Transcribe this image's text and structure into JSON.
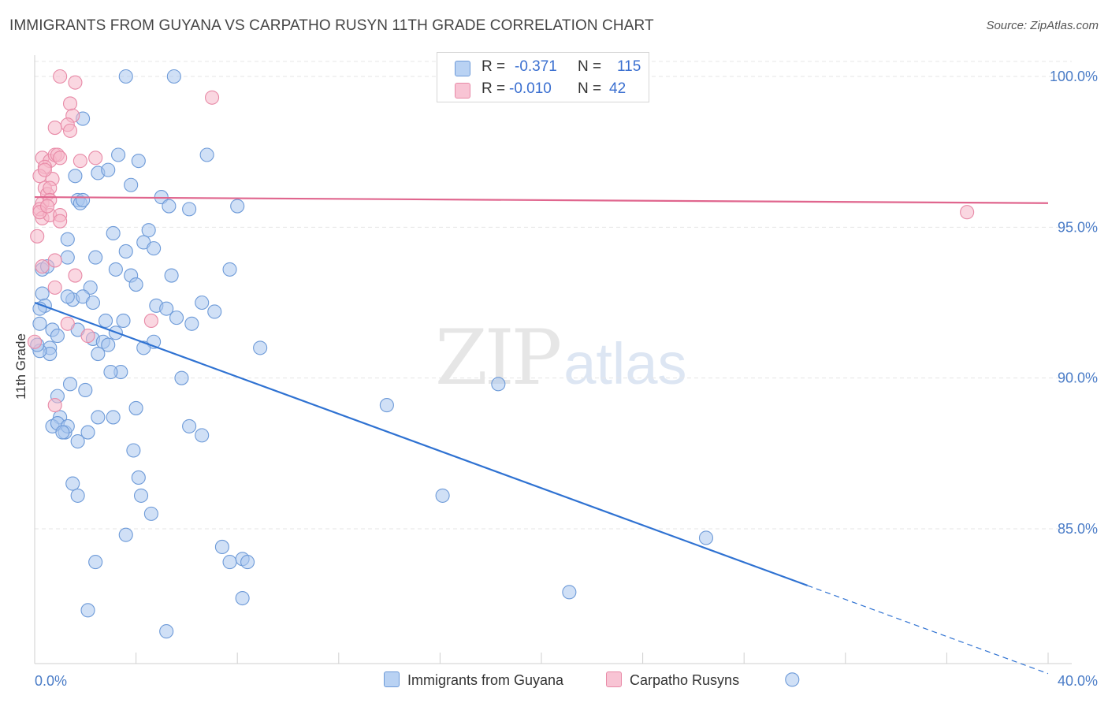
{
  "header": {
    "title": "IMMIGRANTS FROM GUYANA VS CARPATHO RUSYN 11TH GRADE CORRELATION CHART",
    "source": "Source: ZipAtlas.com"
  },
  "watermark": {
    "zip": "ZIP",
    "atlas": "atlas"
  },
  "legend": {
    "rows": [
      {
        "r_label": "R =",
        "r_value": "-0.371",
        "n_label": "N =",
        "n_value": "115"
      },
      {
        "r_label": "R =",
        "r_value": "-0.010",
        "n_label": "N =",
        "n_value": "42"
      }
    ]
  },
  "bottom_legend": {
    "series_a": "Immigrants from Guyana",
    "series_b": "Carpatho Rusyns"
  },
  "colors": {
    "blue_fill": "#a9c6ef",
    "blue_stroke": "#6d9ad8",
    "blue_line": "#2f72d2",
    "pink_fill": "#f5b6c9",
    "pink_stroke": "#e88aa7",
    "pink_line": "#e0668e",
    "tick": "#4a7cc7",
    "grid": "#e6e6e6"
  },
  "chart_data": {
    "type": "scatter",
    "title": "IMMIGRANTS FROM GUYANA VS CARPATHO RUSYN 11TH GRADE CORRELATION CHART",
    "xlabel": "",
    "ylabel": "11th Grade",
    "xlim": [
      0,
      40
    ],
    "ylim": [
      80,
      100.5
    ],
    "x_tick_labels": [
      {
        "value": 0,
        "label": "0.0%"
      },
      {
        "value": 40,
        "label": "40.0%"
      }
    ],
    "y_tick_labels": [
      {
        "value": 85,
        "label": "85.0%"
      },
      {
        "value": 90,
        "label": "90.0%"
      },
      {
        "value": 95,
        "label": "95.0%"
      },
      {
        "value": 100,
        "label": "100.0%"
      }
    ],
    "series": [
      {
        "name": "Immigrants from Guyana",
        "R": -0.371,
        "N": 115,
        "trend": {
          "x_start": 0,
          "y_start": 92.5,
          "x_solid_end": 30.5,
          "x_end": 40,
          "y_end": 80.2
        },
        "points": [
          [
            3.6,
            100.0
          ],
          [
            5.5,
            100.0
          ],
          [
            1.9,
            98.6
          ],
          [
            3.3,
            97.4
          ],
          [
            4.1,
            97.2
          ],
          [
            6.8,
            97.4
          ],
          [
            1.6,
            96.7
          ],
          [
            2.5,
            96.8
          ],
          [
            2.9,
            96.9
          ],
          [
            3.8,
            96.4
          ],
          [
            1.7,
            95.9
          ],
          [
            1.8,
            95.8
          ],
          [
            1.9,
            95.9
          ],
          [
            5.0,
            96.0
          ],
          [
            5.3,
            95.7
          ],
          [
            6.1,
            95.6
          ],
          [
            8.0,
            95.7
          ],
          [
            1.3,
            94.6
          ],
          [
            3.1,
            94.8
          ],
          [
            4.5,
            94.9
          ],
          [
            4.3,
            94.5
          ],
          [
            4.7,
            94.3
          ],
          [
            3.6,
            94.2
          ],
          [
            2.4,
            94.0
          ],
          [
            0.3,
            93.6
          ],
          [
            0.5,
            93.7
          ],
          [
            1.3,
            94.0
          ],
          [
            3.2,
            93.6
          ],
          [
            5.4,
            93.4
          ],
          [
            7.7,
            93.6
          ],
          [
            3.8,
            93.4
          ],
          [
            4.0,
            93.1
          ],
          [
            2.2,
            93.0
          ],
          [
            0.3,
            92.8
          ],
          [
            1.5,
            92.6
          ],
          [
            1.9,
            92.7
          ],
          [
            1.3,
            92.7
          ],
          [
            0.4,
            92.4
          ],
          [
            0.2,
            92.3
          ],
          [
            2.3,
            92.5
          ],
          [
            4.8,
            92.4
          ],
          [
            6.6,
            92.5
          ],
          [
            7.1,
            92.2
          ],
          [
            5.2,
            92.3
          ],
          [
            5.6,
            92.0
          ],
          [
            2.8,
            91.9
          ],
          [
            3.5,
            91.9
          ],
          [
            6.2,
            91.8
          ],
          [
            0.2,
            91.8
          ],
          [
            0.7,
            91.6
          ],
          [
            1.7,
            91.6
          ],
          [
            0.9,
            91.4
          ],
          [
            2.3,
            91.3
          ],
          [
            3.2,
            91.5
          ],
          [
            2.7,
            91.2
          ],
          [
            4.7,
            91.2
          ],
          [
            0.6,
            91.0
          ],
          [
            0.6,
            90.8
          ],
          [
            2.5,
            90.8
          ],
          [
            2.9,
            91.1
          ],
          [
            4.3,
            91.0
          ],
          [
            8.9,
            91.0
          ],
          [
            0.2,
            90.9
          ],
          [
            3.4,
            90.2
          ],
          [
            3.0,
            90.2
          ],
          [
            5.8,
            90.0
          ],
          [
            1.4,
            89.8
          ],
          [
            2.0,
            89.6
          ],
          [
            18.3,
            89.8
          ],
          [
            0.9,
            89.4
          ],
          [
            4.0,
            89.0
          ],
          [
            13.9,
            89.1
          ],
          [
            1.0,
            88.7
          ],
          [
            2.5,
            88.7
          ],
          [
            3.1,
            88.7
          ],
          [
            0.7,
            88.4
          ],
          [
            0.9,
            88.5
          ],
          [
            1.2,
            88.2
          ],
          [
            1.3,
            88.4
          ],
          [
            1.1,
            88.2
          ],
          [
            2.1,
            88.2
          ],
          [
            6.1,
            88.4
          ],
          [
            6.6,
            88.1
          ],
          [
            1.7,
            87.9
          ],
          [
            3.9,
            87.6
          ],
          [
            4.1,
            86.7
          ],
          [
            1.5,
            86.5
          ],
          [
            1.7,
            86.1
          ],
          [
            4.2,
            86.1
          ],
          [
            16.1,
            86.1
          ],
          [
            4.6,
            85.5
          ],
          [
            3.6,
            84.8
          ],
          [
            26.5,
            84.7
          ],
          [
            7.4,
            84.4
          ],
          [
            7.7,
            83.9
          ],
          [
            8.2,
            84.0
          ],
          [
            8.4,
            83.9
          ],
          [
            2.4,
            83.9
          ],
          [
            21.1,
            82.9
          ],
          [
            8.2,
            82.7
          ],
          [
            2.1,
            82.3
          ],
          [
            5.2,
            81.6
          ],
          [
            29.9,
            80.0
          ],
          [
            0.1,
            91.1
          ]
        ]
      },
      {
        "name": "Carpatho Rusyns",
        "R": -0.01,
        "N": 42,
        "trend": {
          "x_start": 0,
          "y_start": 96.0,
          "x_end": 40,
          "y_end": 95.8
        },
        "points": [
          [
            1.0,
            100.0
          ],
          [
            1.6,
            99.8
          ],
          [
            7.0,
            99.3
          ],
          [
            1.4,
            99.1
          ],
          [
            1.5,
            98.7
          ],
          [
            0.8,
            98.3
          ],
          [
            1.3,
            98.4
          ],
          [
            1.4,
            98.2
          ],
          [
            0.3,
            97.3
          ],
          [
            0.6,
            97.2
          ],
          [
            0.8,
            97.4
          ],
          [
            0.9,
            97.4
          ],
          [
            1.0,
            97.3
          ],
          [
            0.4,
            97.0
          ],
          [
            1.8,
            97.2
          ],
          [
            2.4,
            97.3
          ],
          [
            0.2,
            96.7
          ],
          [
            0.7,
            96.6
          ],
          [
            0.4,
            96.3
          ],
          [
            0.5,
            96.1
          ],
          [
            0.6,
            96.3
          ],
          [
            0.3,
            95.8
          ],
          [
            0.6,
            95.9
          ],
          [
            0.2,
            95.6
          ],
          [
            0.3,
            95.3
          ],
          [
            0.6,
            95.4
          ],
          [
            1.0,
            95.4
          ],
          [
            1.0,
            95.2
          ],
          [
            0.1,
            94.7
          ],
          [
            0.8,
            93.9
          ],
          [
            0.3,
            93.7
          ],
          [
            1.6,
            93.4
          ],
          [
            0.8,
            93.0
          ],
          [
            4.6,
            91.9
          ],
          [
            1.3,
            91.8
          ],
          [
            2.1,
            91.4
          ],
          [
            0.0,
            91.2
          ],
          [
            0.8,
            89.1
          ],
          [
            36.8,
            95.5
          ],
          [
            0.2,
            95.5
          ],
          [
            0.4,
            96.9
          ],
          [
            0.5,
            95.7
          ]
        ]
      }
    ]
  }
}
